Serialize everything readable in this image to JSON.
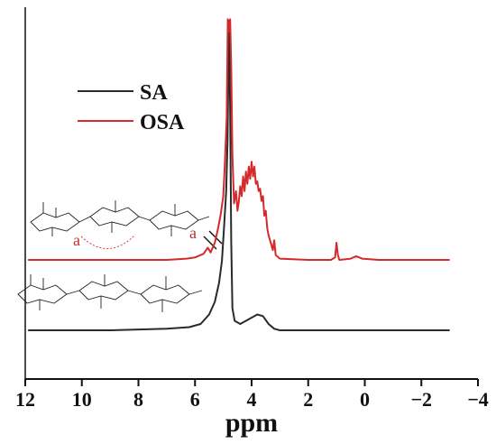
{
  "chart_data": {
    "type": "line",
    "title": "",
    "xlabel": "ppm",
    "ylabel": "",
    "xlim": [
      12,
      -4
    ],
    "x_reversed": true,
    "x_ticks": [
      12,
      10,
      8,
      6,
      4,
      2,
      0,
      -2,
      -4
    ],
    "x_tick_labels": [
      "12",
      "10",
      "8",
      "6",
      "4",
      "2",
      "0",
      "−2",
      "−4"
    ],
    "grid": false,
    "legend_position": "top-left",
    "annotations": [
      "a",
      "a"
    ],
    "series": [
      {
        "name": "SA",
        "color": "#2a2a2a",
        "points": [
          [
            11.9,
            0.02
          ],
          [
            9.0,
            0.02
          ],
          [
            7.0,
            0.025
          ],
          [
            6.2,
            0.03
          ],
          [
            5.8,
            0.04
          ],
          [
            5.5,
            0.07
          ],
          [
            5.3,
            0.11
          ],
          [
            5.15,
            0.17
          ],
          [
            5.05,
            0.24
          ],
          [
            4.98,
            0.34
          ],
          [
            4.9,
            0.46
          ],
          [
            4.85,
            0.62
          ],
          [
            4.8,
            1.0
          ],
          [
            4.76,
            0.72
          ],
          [
            4.72,
            0.3
          ],
          [
            4.68,
            0.09
          ],
          [
            4.6,
            0.05
          ],
          [
            4.4,
            0.04
          ],
          [
            4.2,
            0.05
          ],
          [
            4.0,
            0.06
          ],
          [
            3.8,
            0.07
          ],
          [
            3.6,
            0.065
          ],
          [
            3.4,
            0.04
          ],
          [
            3.2,
            0.025
          ],
          [
            3.0,
            0.02
          ],
          [
            1.0,
            0.02
          ],
          [
            -3.0,
            0.02
          ]
        ]
      },
      {
        "name": "OSA",
        "color": "#d42a2a",
        "points": [
          [
            11.9,
            0.02
          ],
          [
            7.0,
            0.02
          ],
          [
            6.3,
            0.025
          ],
          [
            6.0,
            0.03
          ],
          [
            5.7,
            0.045
          ],
          [
            5.55,
            0.07
          ],
          [
            5.45,
            0.05
          ],
          [
            5.3,
            0.09
          ],
          [
            5.2,
            0.14
          ],
          [
            5.1,
            0.2
          ],
          [
            5.0,
            0.28
          ],
          [
            4.95,
            0.4
          ],
          [
            4.88,
            0.6
          ],
          [
            4.84,
            1.0
          ],
          [
            4.8,
            0.95
          ],
          [
            4.76,
            1.0
          ],
          [
            4.72,
            0.8
          ],
          [
            4.68,
            0.45
          ],
          [
            4.62,
            0.25
          ],
          [
            4.55,
            0.3
          ],
          [
            4.5,
            0.22
          ],
          [
            4.45,
            0.26
          ],
          [
            4.4,
            0.32
          ],
          [
            4.35,
            0.28
          ],
          [
            4.3,
            0.36
          ],
          [
            4.25,
            0.3
          ],
          [
            4.2,
            0.38
          ],
          [
            4.15,
            0.33
          ],
          [
            4.1,
            0.4
          ],
          [
            4.05,
            0.35
          ],
          [
            4.0,
            0.42
          ],
          [
            3.95,
            0.36
          ],
          [
            3.9,
            0.4
          ],
          [
            3.85,
            0.33
          ],
          [
            3.8,
            0.34
          ],
          [
            3.75,
            0.3
          ],
          [
            3.7,
            0.31
          ],
          [
            3.65,
            0.26
          ],
          [
            3.6,
            0.28
          ],
          [
            3.55,
            0.2
          ],
          [
            3.5,
            0.22
          ],
          [
            3.45,
            0.15
          ],
          [
            3.4,
            0.12
          ],
          [
            3.3,
            0.08
          ],
          [
            3.25,
            0.06
          ],
          [
            3.2,
            0.1
          ],
          [
            3.15,
            0.04
          ],
          [
            3.0,
            0.025
          ],
          [
            2.0,
            0.02
          ],
          [
            1.2,
            0.02
          ],
          [
            1.05,
            0.03
          ],
          [
            1.0,
            0.09
          ],
          [
            0.95,
            0.04
          ],
          [
            0.9,
            0.02
          ],
          [
            0.5,
            0.025
          ],
          [
            0.3,
            0.035
          ],
          [
            0.1,
            0.025
          ],
          [
            -0.5,
            0.02
          ],
          [
            -3.0,
            0.02
          ]
        ]
      }
    ]
  },
  "legend": [
    {
      "label": "SA",
      "color": "#2a2a2a"
    },
    {
      "label": "OSA",
      "color": "#d42a2a"
    }
  ]
}
